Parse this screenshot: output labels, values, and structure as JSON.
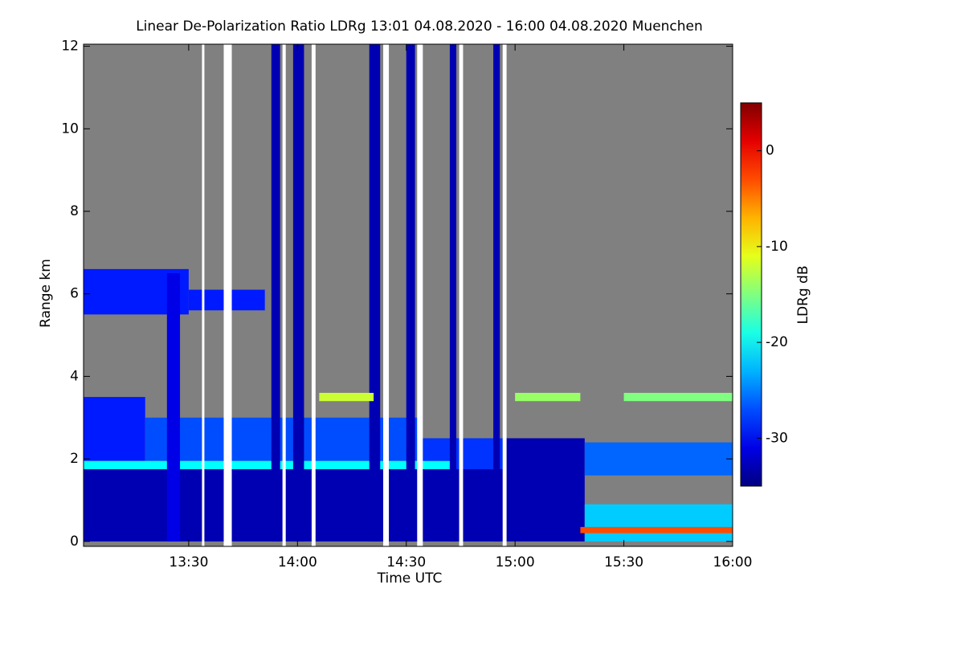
{
  "chart_data": {
    "type": "heatmap",
    "title": "Linear De-Polarization Ratio LDRg   13:01 04.08.2020 - 16:00 04.08.2020 Muenchen",
    "x_label": "Time UTC",
    "y_label": "Range km",
    "colorbar_label": "LDRg dB",
    "xlim": [
      13.0167,
      16.0
    ],
    "xticks": [
      {
        "value": 13.5,
        "label": "13:30"
      },
      {
        "value": 14.0,
        "label": "14:00"
      },
      {
        "value": 14.5,
        "label": "14:30"
      },
      {
        "value": 15.0,
        "label": "15:00"
      },
      {
        "value": 15.5,
        "label": "15:30"
      },
      {
        "value": 16.0,
        "label": "16:00"
      }
    ],
    "ylim": [
      -0.12,
      12.05
    ],
    "yticks": [
      0,
      2,
      4,
      6,
      8,
      10,
      12
    ],
    "clim": [
      -35,
      5
    ],
    "cticks": [
      0,
      -10,
      -20,
      -30
    ],
    "colormap": "jet",
    "missing_color": "#808080",
    "regions": [
      {
        "x": [
          13.0167,
          13.3
        ],
        "y": [
          1.95,
          3.5
        ],
        "value": -29
      },
      {
        "x": [
          13.3,
          14.55
        ],
        "y": [
          1.95,
          3.0
        ],
        "value": -27
      },
      {
        "x": [
          14.55,
          14.95
        ],
        "y": [
          1.7,
          2.5
        ],
        "value": -28
      },
      {
        "x": [
          13.0167,
          14.95
        ],
        "y": [
          0,
          1.75
        ],
        "value": -33
      },
      {
        "x": [
          13.0167,
          14.7
        ],
        "y": [
          1.75,
          1.95
        ],
        "value": -20
      },
      {
        "x": [
          13.0167,
          13.5
        ],
        "y": [
          5.5,
          6.6
        ],
        "value": -29
      },
      {
        "x": [
          13.5,
          13.85
        ],
        "y": [
          5.6,
          6.1
        ],
        "value": -29
      },
      {
        "x": [
          13.88,
          13.92
        ],
        "y": [
          0,
          12.05
        ],
        "value": -33
      },
      {
        "x": [
          13.98,
          14.03
        ],
        "y": [
          0,
          12.05
        ],
        "value": -33
      },
      {
        "x": [
          14.33,
          14.38
        ],
        "y": [
          0,
          12.05
        ],
        "value": -33
      },
      {
        "x": [
          14.5,
          14.54
        ],
        "y": [
          0,
          12.05
        ],
        "value": -33
      },
      {
        "x": [
          14.7,
          14.73
        ],
        "y": [
          0,
          12.05
        ],
        "value": -33
      },
      {
        "x": [
          14.9,
          14.93
        ],
        "y": [
          0,
          12.05
        ],
        "value": -33
      },
      {
        "x": [
          13.4,
          13.46
        ],
        "y": [
          0,
          6.5
        ],
        "value": -31
      },
      {
        "x": [
          14.96,
          15.32
        ],
        "y": [
          0,
          2.5
        ],
        "value": -33
      },
      {
        "x": [
          15.32,
          16.0
        ],
        "y": [
          1.6,
          2.4
        ],
        "value": -26
      },
      {
        "x": [
          15.32,
          16.0
        ],
        "y": [
          0,
          0.9
        ],
        "value": -22
      },
      {
        "x": [
          15.3,
          16.0
        ],
        "y": [
          0.2,
          0.35
        ],
        "value": -3
      },
      {
        "x": [
          14.1,
          14.35
        ],
        "y": [
          3.4,
          3.6
        ],
        "value": -12
      },
      {
        "x": [
          15.0,
          15.3
        ],
        "y": [
          3.4,
          3.6
        ],
        "value": -14
      },
      {
        "x": [
          15.5,
          16.0
        ],
        "y": [
          3.4,
          3.6
        ],
        "value": -15
      }
    ],
    "gaps": [
      [
        13.561,
        13.572
      ],
      [
        13.661,
        13.698
      ],
      [
        13.931,
        13.946
      ],
      [
        14.065,
        14.083
      ],
      [
        14.394,
        14.42
      ],
      [
        14.55,
        14.576
      ],
      [
        14.743,
        14.761
      ],
      [
        14.943,
        14.961
      ]
    ],
    "gap_color": "#ffffff"
  }
}
